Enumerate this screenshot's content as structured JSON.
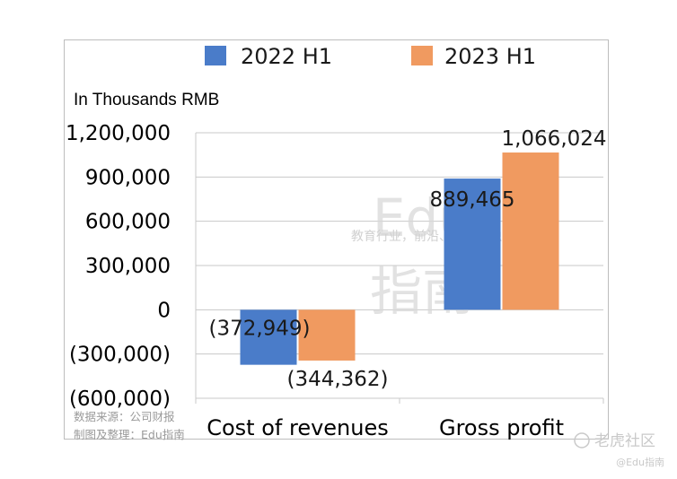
{
  "chart_data": {
    "type": "bar",
    "unit_label": "In Thousands RMB",
    "categories": [
      "Cost of revenues",
      "Gross profit"
    ],
    "series": [
      {
        "name": "2022 H1",
        "color": "#4a7cc9",
        "values": [
          -372949,
          889465
        ]
      },
      {
        "name": "2023 H1",
        "color": "#f09a60",
        "values": [
          -344362,
          1066024
        ]
      }
    ],
    "data_labels": [
      [
        "(372,949)",
        "889,465"
      ],
      [
        "(344,362)",
        "1,066,024"
      ]
    ],
    "y_ticks": [
      1200000,
      900000,
      600000,
      300000,
      0,
      -300000,
      -600000
    ],
    "y_tick_labels": [
      "1,200,000",
      "900,000",
      "600,000",
      "300,000",
      "0",
      "(300,000)",
      "(600,000)"
    ],
    "ylim": [
      -600000,
      1200000
    ],
    "grid": true,
    "legend_position": "top"
  },
  "source_note": {
    "line1": "数据来源：公司财报",
    "line2": "制图及整理：Edu指南"
  },
  "watermark": {
    "big_top": "Edu",
    "big_bottom": "指南",
    "slogan": "教育行业，前沿、深度、独家"
  },
  "corner_watermark": {
    "site": "老虎社区",
    "handle": "@Edu指南"
  }
}
